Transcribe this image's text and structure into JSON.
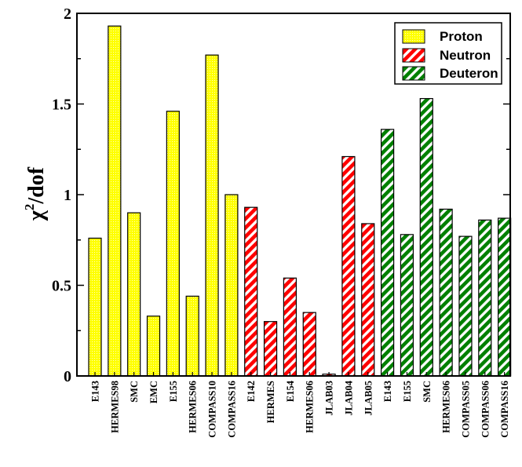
{
  "chart_data": {
    "type": "bar",
    "ylabel": "χ²/dof",
    "ylabel_main": "χ",
    "ylabel_sup": "2",
    "ylabel_rest": "/dof",
    "ylim": [
      0,
      2
    ],
    "yticks": [
      0,
      0.5,
      1,
      1.5,
      2
    ],
    "ytick_labels": [
      "0",
      "0.5",
      "1",
      "1.5",
      "2"
    ],
    "grid": false,
    "legend_position": "top-right",
    "colors": {
      "Proton": "#ffff00",
      "Neutron": "#ff0000",
      "Deuteron": "#008000"
    },
    "patterns": {
      "Proton": "dots",
      "Neutron": "diagonal-stripes",
      "Deuteron": "diagonal-stripes"
    },
    "legend": [
      "Proton",
      "Neutron",
      "Deuteron"
    ],
    "categories": [
      "E143",
      "HERMES98",
      "SMC",
      "EMC",
      "E155",
      "HERMES06",
      "COMPASS10",
      "COMPASS16",
      "E142",
      "HERMES",
      "E154",
      "HERMES06",
      "JLAB03",
      "JLAB04",
      "JLAB05",
      "E143",
      "E155",
      "SMC",
      "HERMES06",
      "COMPASS05",
      "COMPASS06",
      "COMPASS16"
    ],
    "group": [
      "Proton",
      "Proton",
      "Proton",
      "Proton",
      "Proton",
      "Proton",
      "Proton",
      "Proton",
      "Neutron",
      "Neutron",
      "Neutron",
      "Neutron",
      "Neutron",
      "Neutron",
      "Neutron",
      "Deuteron",
      "Deuteron",
      "Deuteron",
      "Deuteron",
      "Deuteron",
      "Deuteron",
      "Deuteron"
    ],
    "values": [
      0.76,
      1.93,
      0.9,
      0.33,
      1.46,
      0.44,
      1.77,
      1.0,
      0.93,
      0.3,
      0.54,
      0.35,
      0.01,
      1.21,
      0.84,
      1.36,
      0.78,
      1.53,
      0.92,
      0.77,
      0.86,
      0.87
    ]
  }
}
